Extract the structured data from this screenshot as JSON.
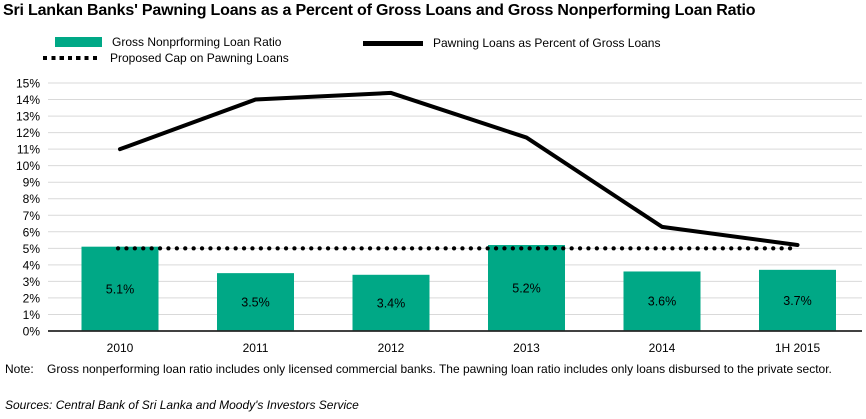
{
  "title": "Sri Lankan Banks' Pawning Loans as a Percent of Gross Loans and Gross Nonperforming Loan Ratio",
  "legend": {
    "npl_label": "Gross Nonprforming Loan Ratio",
    "pawning_label": "Pawning Loans as Percent of Gross Loans",
    "cap_label": "Proposed Cap on Pawning Loans"
  },
  "colors": {
    "bar_green": "#00a886",
    "line_black": "#000000",
    "gridline": "#d9d9d9",
    "axis": "#262626"
  },
  "note": {
    "label": "Note:",
    "text": "Gross nonperforming loan ratio includes only licensed commercial banks. The pawning loan ratio includes only loans disbursed to the private sector."
  },
  "sources": "Sources: Central Bank of Sri Lanka and Moody's Investors Service",
  "chart_data": {
    "type": "bar",
    "categories": [
      "2010",
      "2011",
      "2012",
      "2013",
      "2014",
      "1H 2015"
    ],
    "series": [
      {
        "name": "Gross Nonprforming Loan Ratio",
        "type": "bar",
        "values": [
          5.1,
          3.5,
          3.4,
          5.2,
          3.6,
          3.7
        ],
        "labels": [
          "5.1%",
          "3.5%",
          "3.4%",
          "5.2%",
          "3.6%",
          "3.7%"
        ],
        "color": "#00a886"
      },
      {
        "name": "Pawning Loans as Percent of Gross Loans",
        "type": "line",
        "values": [
          11.0,
          14.0,
          14.4,
          11.7,
          6.3,
          5.2
        ],
        "color": "#000000"
      },
      {
        "name": "Proposed Cap on Pawning Loans",
        "type": "dotted-line",
        "values": [
          5.0,
          5.0,
          5.0,
          5.0,
          5.0,
          5.0
        ],
        "color": "#000000"
      }
    ],
    "ylabel": "",
    "xlabel": "",
    "ylim": [
      0,
      15
    ],
    "ytick_step": 1,
    "ytick_suffix": "%",
    "grid": true,
    "legend_position": "top-left"
  }
}
